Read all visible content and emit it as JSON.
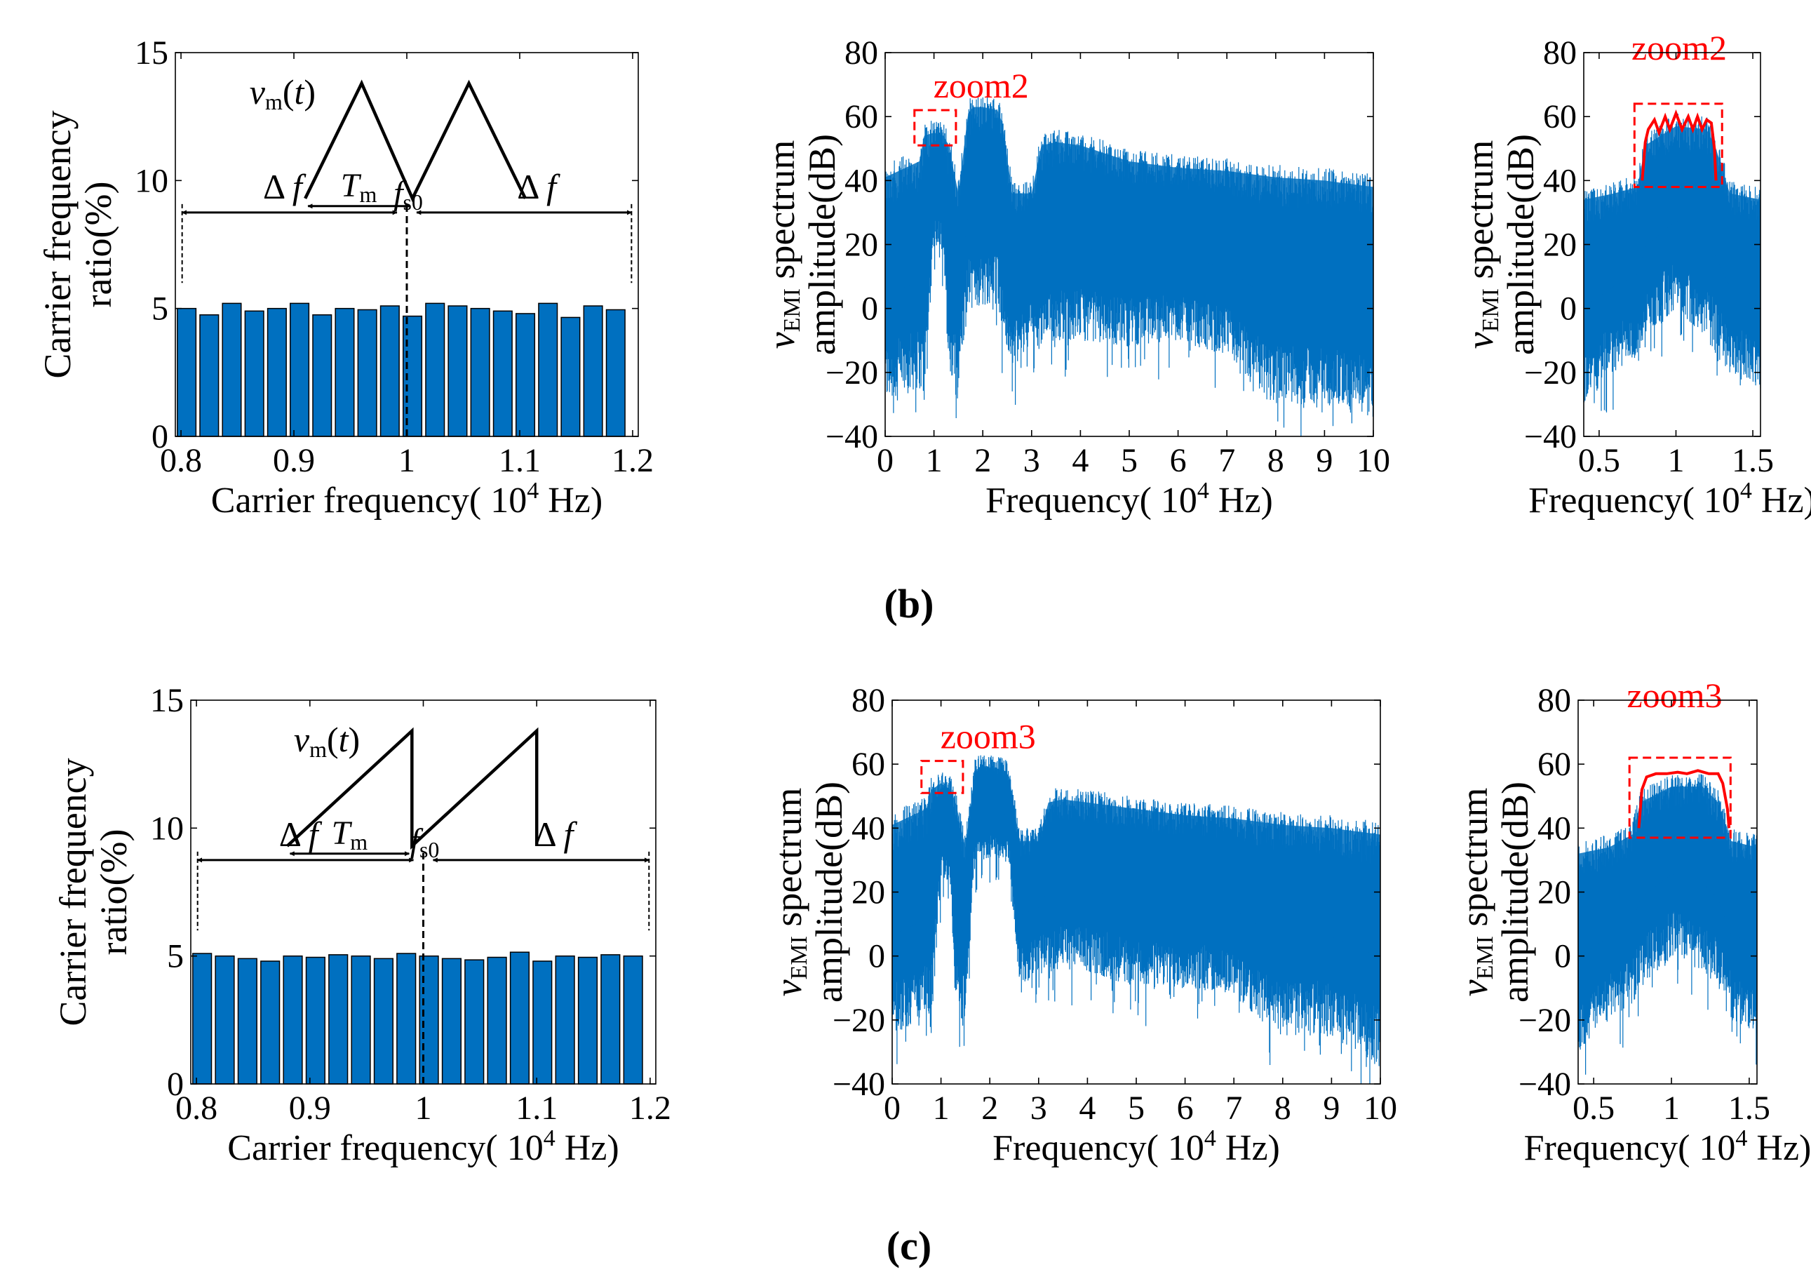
{
  "figure": {
    "panel_labels": [
      "(b)",
      "(c)"
    ]
  },
  "colors": {
    "bar": "#0070C0",
    "spectrum": "#0070C0",
    "zoom": "#FF0000",
    "axis": "#000000"
  },
  "chart_data": [
    {
      "type": "bar",
      "panel": "(b)",
      "modulation": "triangular",
      "xlabel": "Carrier frequency( 10⁴ Hz)",
      "ylabel_lines": [
        "Carrier frequency",
        "ratio(%)"
      ],
      "xlim": [
        0.795,
        1.205
      ],
      "ylim": [
        0,
        15
      ],
      "xticks": [
        0.8,
        0.9,
        1,
        1.1,
        1.2
      ],
      "xtick_labels": [
        "0.8",
        "0.9",
        "1",
        "1.1",
        "1.2"
      ],
      "yticks": [
        0,
        5,
        10,
        15
      ],
      "ytick_labels": [
        "0",
        "5",
        "10",
        "15"
      ],
      "bar_width": 0.0165,
      "x": [
        0.805,
        0.825,
        0.845,
        0.865,
        0.885,
        0.905,
        0.925,
        0.945,
        0.965,
        0.985,
        1.005,
        1.025,
        1.045,
        1.065,
        1.085,
        1.105,
        1.125,
        1.145,
        1.165,
        1.185
      ],
      "values": [
        5.0,
        4.75,
        5.2,
        4.9,
        5.0,
        5.2,
        4.75,
        5.0,
        4.95,
        5.1,
        4.7,
        5.2,
        5.1,
        5.0,
        4.9,
        4.8,
        5.2,
        4.65,
        5.1,
        4.95
      ],
      "annotations": {
        "vm_label": "v",
        "vm_sub": "m",
        "vm_tail": "(t)",
        "tm_label": "T",
        "tm_sub": "m",
        "df_left": "Δf",
        "df_right": "Δf",
        "fs0_label": "f",
        "fs0_sub": "s0"
      }
    },
    {
      "type": "line",
      "panel": "(b)",
      "xlabel": "Frequency( 10⁴ Hz)",
      "ylabel_lines": [
        "v",
        "EMI",
        " spectrum",
        "amplitude(dB)"
      ],
      "xlim": [
        0,
        10
      ],
      "ylim": [
        -40,
        80
      ],
      "xticks": [
        0,
        1,
        2,
        3,
        4,
        5,
        6,
        7,
        8,
        9,
        10
      ],
      "xtick_labels": [
        "0",
        "1",
        "2",
        "3",
        "4",
        "5",
        "6",
        "7",
        "8",
        "9",
        "10"
      ],
      "yticks": [
        -40,
        -20,
        0,
        20,
        40,
        60,
        80
      ],
      "ytick_labels": [
        "−40",
        "−20",
        "0",
        "20",
        "40",
        "60",
        "80"
      ],
      "envelope": {
        "x": [
          0.0,
          0.7,
          0.8,
          1.0,
          1.2,
          1.3,
          1.5,
          1.7,
          1.8,
          2.0,
          2.3,
          2.4,
          2.6,
          3.0,
          3.2,
          3.5,
          4.0,
          5.0,
          6.0,
          7.0,
          7.5,
          8.0,
          9.0,
          10.0
        ],
        "upper": [
          45,
          50,
          58,
          59,
          58,
          55,
          40,
          65,
          67,
          67,
          66,
          62,
          40,
          40,
          55,
          56,
          55,
          50,
          48,
          47,
          46,
          45,
          44,
          42
        ],
        "lower": [
          -30,
          -25,
          -30,
          20,
          18,
          -25,
          -25,
          0,
          0,
          0,
          5,
          -10,
          -20,
          -10,
          -15,
          -10,
          -10,
          -12,
          -10,
          -15,
          -25,
          -30,
          -30,
          -35
        ]
      },
      "zoom_box": {
        "label": "zoom2",
        "x": [
          0.6,
          1.45
        ],
        "y": [
          51,
          62
        ]
      }
    },
    {
      "type": "line",
      "panel": "(b)",
      "xlabel": "Frequency( 10⁴ Hz)",
      "ylabel_lines": [
        "v",
        "EMI",
        " spectrum",
        "amplitude(dB)"
      ],
      "xlim": [
        0.4,
        1.55
      ],
      "ylim": [
        -40,
        80
      ],
      "xticks": [
        0.5,
        1,
        1.5
      ],
      "xtick_labels": [
        "0.5",
        "1",
        "1.5"
      ],
      "yticks": [
        -40,
        -20,
        0,
        20,
        40,
        60,
        80
      ],
      "ytick_labels": [
        "−40",
        "−20",
        "0",
        "20",
        "40",
        "60",
        "80"
      ],
      "envelope": {
        "x": [
          0.4,
          0.6,
          0.75,
          0.8,
          1.0,
          1.2,
          1.26,
          1.35,
          1.55
        ],
        "upper": [
          38,
          40,
          42,
          55,
          61,
          60,
          54,
          40,
          38
        ],
        "lower": [
          -30,
          -20,
          -15,
          -10,
          0,
          -10,
          -15,
          -20,
          -25
        ]
      },
      "red_envelope": {
        "x": [
          0.78,
          0.8,
          0.82,
          0.86,
          0.89,
          0.93,
          0.96,
          1.0,
          1.04,
          1.08,
          1.11,
          1.14,
          1.17,
          1.2,
          1.23,
          1.25,
          1.26
        ],
        "y": [
          40,
          52,
          56,
          59,
          55,
          60,
          56,
          61,
          56,
          60,
          56,
          60,
          56,
          59,
          58,
          50,
          40
        ]
      },
      "zoom_box": {
        "label": "zoom2",
        "x": [
          0.73,
          1.3
        ],
        "y": [
          38,
          64
        ]
      }
    },
    {
      "type": "bar",
      "panel": "(c)",
      "modulation": "sawtooth",
      "xlabel": "Carrier frequency( 10⁴ Hz)",
      "ylabel_lines": [
        "Carrier frequency",
        "ratio(%)"
      ],
      "xlim": [
        0.795,
        1.205
      ],
      "ylim": [
        0,
        15
      ],
      "xticks": [
        0.8,
        0.9,
        1,
        1.1,
        1.2
      ],
      "xtick_labels": [
        "0.8",
        "0.9",
        "1",
        "1.1",
        "1.2"
      ],
      "yticks": [
        0,
        5,
        10,
        15
      ],
      "ytick_labels": [
        "0",
        "5",
        "10",
        "15"
      ],
      "bar_width": 0.0165,
      "x": [
        0.805,
        0.825,
        0.845,
        0.865,
        0.885,
        0.905,
        0.925,
        0.945,
        0.965,
        0.985,
        1.005,
        1.025,
        1.045,
        1.065,
        1.085,
        1.105,
        1.125,
        1.145,
        1.165,
        1.185
      ],
      "values": [
        5.1,
        5.0,
        4.9,
        4.8,
        5.0,
        4.95,
        5.05,
        5.0,
        4.9,
        5.1,
        5.0,
        4.9,
        4.85,
        4.95,
        5.15,
        4.8,
        5.0,
        4.95,
        5.05,
        5.0
      ],
      "annotations": {
        "vm_label": "v",
        "vm_sub": "m",
        "vm_tail": "(t)",
        "tm_label": "T",
        "tm_sub": "m",
        "df_left": "Δf",
        "df_right": "Δf",
        "fs0_label": "f",
        "fs0_sub": "s0"
      }
    },
    {
      "type": "line",
      "panel": "(c)",
      "xlabel": "Frequency( 10⁴ Hz)",
      "ylabel_lines": [
        "v",
        "EMI",
        " spectrum",
        "amplitude(dB)"
      ],
      "xlim": [
        0,
        10
      ],
      "ylim": [
        -40,
        80
      ],
      "xticks": [
        0,
        1,
        2,
        3,
        4,
        5,
        6,
        7,
        8,
        9,
        10
      ],
      "xtick_labels": [
        "0",
        "1",
        "2",
        "3",
        "4",
        "5",
        "6",
        "7",
        "8",
        "9",
        "10"
      ],
      "yticks": [
        -40,
        -20,
        0,
        20,
        40,
        60,
        80
      ],
      "ytick_labels": [
        "−40",
        "−20",
        "0",
        "20",
        "40",
        "60",
        "80"
      ],
      "envelope": {
        "x": [
          0.0,
          0.7,
          0.8,
          1.0,
          1.2,
          1.3,
          1.5,
          1.7,
          1.8,
          2.0,
          2.3,
          2.4,
          2.6,
          3.0,
          3.2,
          3.5,
          4.0,
          5.0,
          6.0,
          7.0,
          7.5,
          8.0,
          9.0,
          10.0
        ],
        "upper": [
          45,
          50,
          56,
          58,
          56,
          52,
          38,
          62,
          63,
          63,
          62,
          60,
          40,
          40,
          52,
          53,
          52,
          50,
          48,
          47,
          46,
          45,
          44,
          42
        ],
        "lower": [
          -25,
          -20,
          -25,
          25,
          22,
          -20,
          -20,
          30,
          30,
          30,
          30,
          28,
          -10,
          -5,
          -5,
          -5,
          -5,
          -10,
          -10,
          -12,
          -20,
          -25,
          -25,
          -35
        ]
      },
      "zoom_box": {
        "label": "zoom3",
        "x": [
          0.6,
          1.45
        ],
        "y": [
          51,
          61
        ]
      }
    },
    {
      "type": "line",
      "panel": "(c)",
      "xlabel": "Frequency( 10⁴ Hz)",
      "ylabel_lines": [
        "v",
        "EMI",
        " spectrum",
        "amplitude(dB)"
      ],
      "xlim": [
        0.4,
        1.55
      ],
      "ylim": [
        -40,
        80
      ],
      "xticks": [
        0.5,
        1,
        1.5
      ],
      "xtick_labels": [
        "0.5",
        "1",
        "1.5"
      ],
      "yticks": [
        -40,
        -20,
        0,
        20,
        40,
        60,
        80
      ],
      "ytick_labels": [
        "−40",
        "−20",
        "0",
        "20",
        "40",
        "60",
        "80"
      ],
      "envelope": {
        "x": [
          0.4,
          0.6,
          0.75,
          0.8,
          1.0,
          1.2,
          1.3,
          1.38,
          1.55
        ],
        "upper": [
          36,
          38,
          42,
          52,
          57,
          57,
          52,
          40,
          38
        ],
        "lower": [
          -30,
          -20,
          -15,
          -10,
          0,
          -5,
          -10,
          -20,
          -25
        ]
      },
      "red_envelope": {
        "x": [
          0.79,
          0.81,
          0.84,
          0.9,
          0.97,
          1.04,
          1.1,
          1.17,
          1.24,
          1.3,
          1.33,
          1.36,
          1.37
        ],
        "y": [
          40,
          52,
          56,
          57,
          57,
          57.5,
          57,
          58,
          57,
          57,
          54,
          46,
          40
        ]
      },
      "zoom_box": {
        "label": "zoom3",
        "x": [
          0.73,
          1.38
        ],
        "y": [
          37,
          62
        ]
      }
    }
  ]
}
